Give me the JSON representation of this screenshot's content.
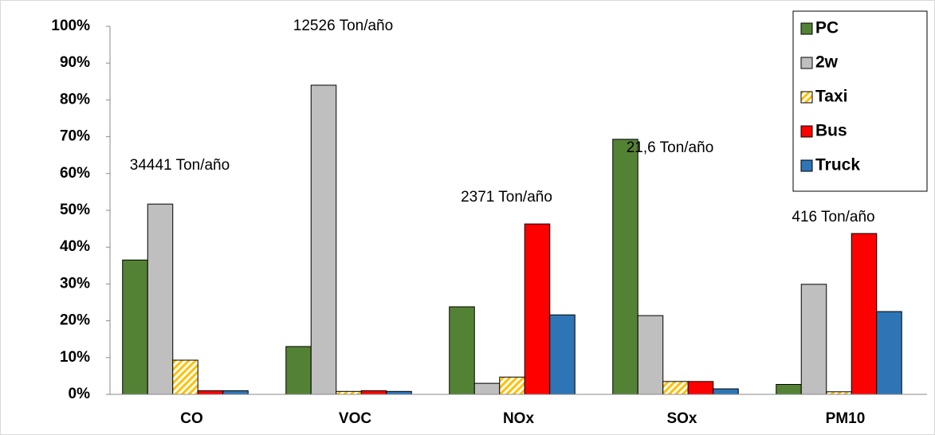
{
  "chart_data": {
    "type": "bar",
    "categories": [
      "CO",
      "VOC",
      "NOx",
      "SOx",
      "PM10"
    ],
    "series": [
      {
        "name": "PC",
        "color": "#548235",
        "values": [
          36.5,
          13,
          23.8,
          69.3,
          2.7
        ]
      },
      {
        "name": "2w",
        "color": "#bfbfbf",
        "values": [
          51.7,
          84,
          3,
          21.4,
          29.9
        ]
      },
      {
        "name": "Taxi",
        "color": "#ffd966",
        "pattern": "hatch",
        "values": [
          9.3,
          0.8,
          4.7,
          3.5,
          0.7
        ]
      },
      {
        "name": "Bus",
        "color": "#ff0000",
        "values": [
          1,
          1,
          46.3,
          3.5,
          43.7
        ]
      },
      {
        "name": "Truck",
        "color": "#2e75b6",
        "values": [
          1,
          0.8,
          21.6,
          1.5,
          22.5
        ]
      }
    ],
    "annotations": [
      "34441 Ton/año",
      "12526 Ton/año",
      "2371 Ton/año",
      "21,6 Ton/año",
      "416 Ton/año"
    ],
    "ylim": [
      0,
      100
    ],
    "yticks": [
      {
        "value": 0,
        "label": "0%"
      },
      {
        "value": 10,
        "label": "10%"
      },
      {
        "value": 20,
        "label": "20%"
      },
      {
        "value": 30,
        "label": "30%"
      },
      {
        "value": 40,
        "label": "40%"
      },
      {
        "value": 50,
        "label": "50%"
      },
      {
        "value": 60,
        "label": "60%"
      },
      {
        "value": 70,
        "label": "70%"
      },
      {
        "value": 80,
        "label": "80%"
      },
      {
        "value": 90,
        "label": "90%"
      },
      {
        "value": 100,
        "label": "100%"
      }
    ],
    "grid": false,
    "legend": "upper right"
  }
}
